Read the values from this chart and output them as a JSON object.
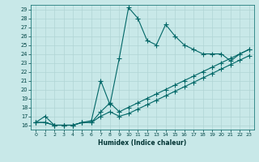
{
  "xlabel": "Humidex (Indice chaleur)",
  "bg_color": "#c8e8e8",
  "grid_color": "#b0d4d4",
  "line_color": "#006666",
  "xlim": [
    -0.5,
    23.5
  ],
  "ylim": [
    15.5,
    29.5
  ],
  "xticks": [
    0,
    1,
    2,
    3,
    4,
    5,
    6,
    7,
    8,
    9,
    10,
    11,
    12,
    13,
    14,
    15,
    16,
    17,
    18,
    19,
    20,
    21,
    22,
    23
  ],
  "yticks": [
    16,
    17,
    18,
    19,
    20,
    21,
    22,
    23,
    24,
    25,
    26,
    27,
    28,
    29
  ],
  "line1_x": [
    0,
    1,
    2,
    3,
    4,
    5,
    6,
    7,
    8,
    9,
    10,
    11,
    12,
    13,
    14,
    15,
    16,
    17,
    18,
    19,
    20,
    21,
    22,
    23
  ],
  "line1_y": [
    16.3,
    17.0,
    16.0,
    16.0,
    16.0,
    16.3,
    16.5,
    21.0,
    18.3,
    23.5,
    29.2,
    28.0,
    25.5,
    25.0,
    27.3,
    26.0,
    25.0,
    24.5,
    24.0,
    24.0,
    24.0,
    23.2,
    24.0,
    24.5
  ],
  "line2_x": [
    0,
    1,
    2,
    3,
    4,
    5,
    6,
    7,
    8,
    9,
    10,
    11,
    12,
    13,
    14,
    15,
    16,
    17,
    18,
    19,
    20,
    21,
    22,
    23
  ],
  "line2_y": [
    16.3,
    16.3,
    16.0,
    16.0,
    16.0,
    16.3,
    16.3,
    17.5,
    18.5,
    17.5,
    18.0,
    18.5,
    19.0,
    19.5,
    20.0,
    20.5,
    21.0,
    21.5,
    22.0,
    22.5,
    23.0,
    23.5,
    24.0,
    24.5
  ],
  "line3_x": [
    0,
    1,
    2,
    3,
    4,
    5,
    6,
    7,
    8,
    9,
    10,
    11,
    12,
    13,
    14,
    15,
    16,
    17,
    18,
    19,
    20,
    21,
    22,
    23
  ],
  "line3_y": [
    16.3,
    16.3,
    16.0,
    16.0,
    16.0,
    16.3,
    16.3,
    17.0,
    17.5,
    17.0,
    17.3,
    17.8,
    18.3,
    18.8,
    19.3,
    19.8,
    20.3,
    20.8,
    21.3,
    21.8,
    22.3,
    22.8,
    23.3,
    23.8
  ]
}
